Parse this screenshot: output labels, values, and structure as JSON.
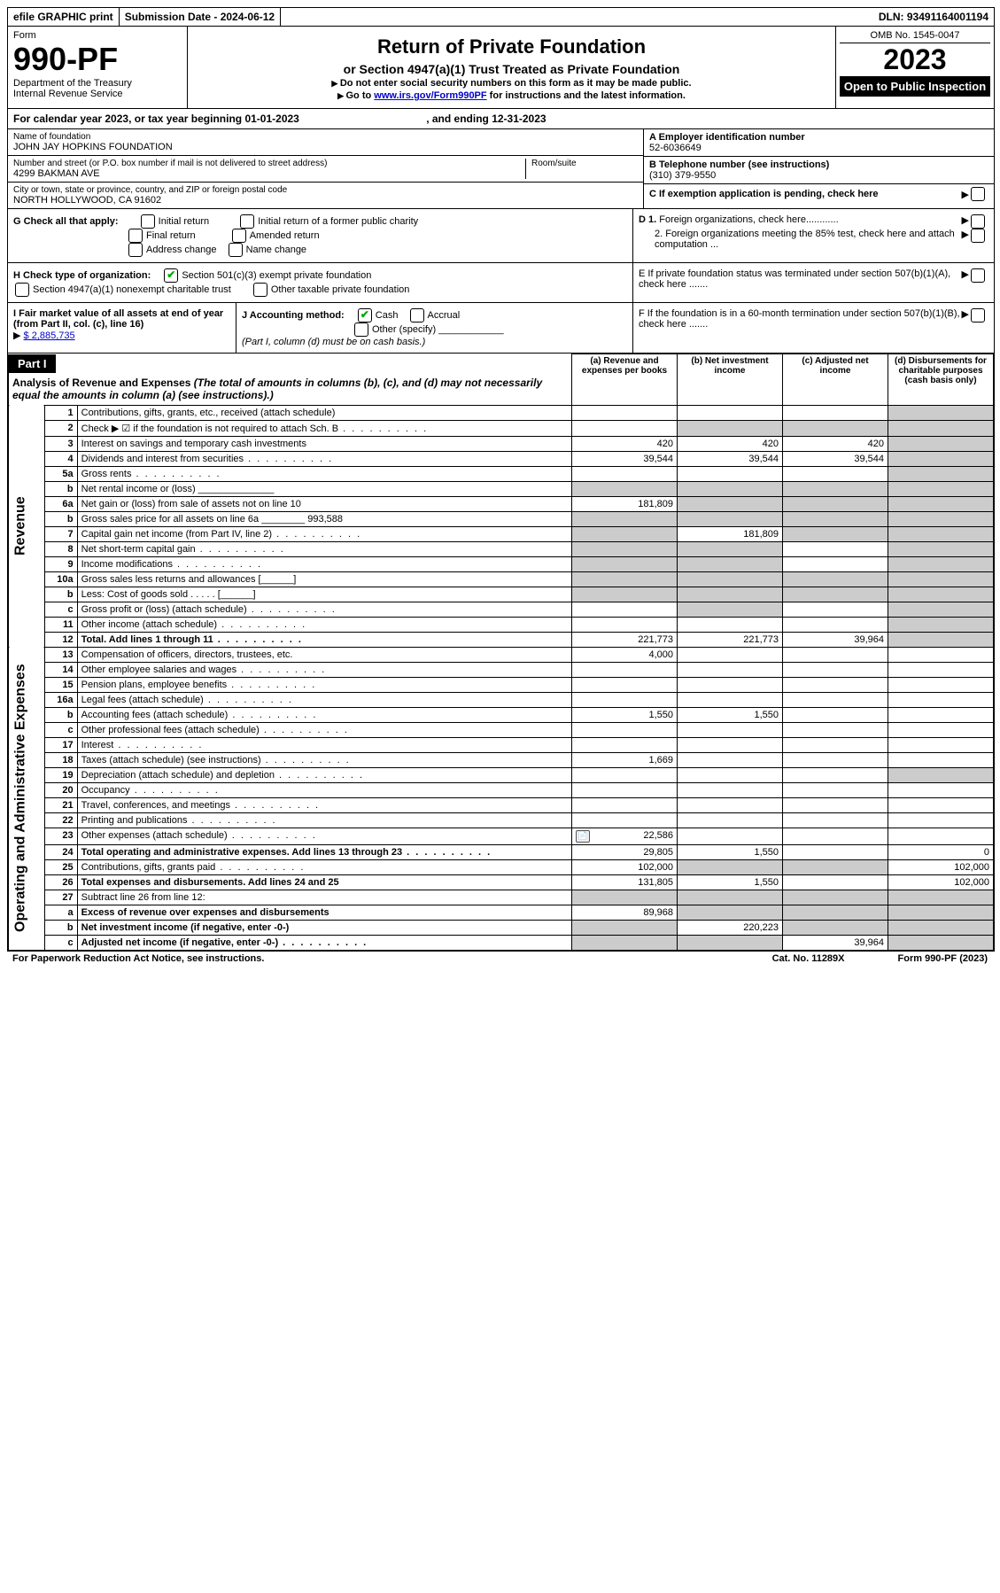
{
  "top_bar": {
    "efile": "efile GRAPHIC print",
    "submission_label": "Submission Date - 2024-06-12",
    "dln": "DLN: 93491164001194"
  },
  "header": {
    "form_label": "Form",
    "form_number": "990-PF",
    "dept1": "Department of the Treasury",
    "dept2": "Internal Revenue Service",
    "title": "Return of Private Foundation",
    "subtitle": "or Section 4947(a)(1) Trust Treated as Private Foundation",
    "note1": "Do not enter social security numbers on this form as it may be made public.",
    "note2_pre": "Go to ",
    "note2_link": "www.irs.gov/Form990PF",
    "note2_post": " for instructions and the latest information.",
    "omb": "OMB No. 1545-0047",
    "year": "2023",
    "open": "Open to Public Inspection"
  },
  "calendar": {
    "text_pre": "For calendar year 2023, or tax year beginning ",
    "begin": "01-01-2023",
    "mid": " , and ending ",
    "end": "12-31-2023"
  },
  "ident": {
    "name_label": "Name of foundation",
    "name": "JOHN JAY HOPKINS FOUNDATION",
    "street_label": "Number and street (or P.O. box number if mail is not delivered to street address)",
    "street": "4299 BAKMAN AVE",
    "room_label": "Room/suite",
    "city_label": "City or town, state or province, country, and ZIP or foreign postal code",
    "city": "NORTH HOLLYWOOD, CA  91602",
    "a_label": "A Employer identification number",
    "a_value": "52-6036649",
    "b_label": "B Telephone number (see instructions)",
    "b_value": "(310) 379-9550",
    "c_label": "C If exemption application is pending, check here"
  },
  "checks": {
    "g_label": "G Check all that apply:",
    "g1": "Initial return",
    "g2": "Initial return of a former public charity",
    "g3": "Final return",
    "g4": "Amended return",
    "g5": "Address change",
    "g6": "Name change",
    "h_label": "H Check type of organization:",
    "h1": "Section 501(c)(3) exempt private foundation",
    "h2": "Section 4947(a)(1) nonexempt charitable trust",
    "h3": "Other taxable private foundation",
    "i_label": "I Fair market value of all assets at end of year (from Part II, col. (c), line 16)",
    "i_value": "$  2,885,735",
    "j_label": "J Accounting method:",
    "j1": "Cash",
    "j2": "Accrual",
    "j3": "Other (specify)",
    "j_note": "(Part I, column (d) must be on cash basis.)",
    "d1": "D 1. Foreign organizations, check here............",
    "d2": "2. Foreign organizations meeting the 85% test, check here and attach computation ...",
    "e": "E  If private foundation status was terminated under section 507(b)(1)(A), check here .......",
    "f": "F  If the foundation is in a 60-month termination under section 507(b)(1)(B), check here ......."
  },
  "part1": {
    "label": "Part I",
    "title": "Analysis of Revenue and Expenses",
    "note": " (The total of amounts in columns (b), (c), and (d) may not necessarily equal the amounts in column (a) (see instructions).)",
    "col_a": "(a)   Revenue and expenses per books",
    "col_b": "(b)   Net investment income",
    "col_c": "(c)   Adjusted net income",
    "col_d": "(d)   Disbursements for charitable purposes (cash basis only)"
  },
  "sections": {
    "revenue": "Revenue",
    "expenses": "Operating and Administrative Expenses"
  },
  "rows": [
    {
      "n": "1",
      "d": "Contributions, gifts, grants, etc., received (attach schedule)",
      "a": "",
      "b": "",
      "c": "",
      "dd": "",
      "d_shade": true
    },
    {
      "n": "2",
      "d": "Check ▶ ☑ if the foundation is not required to attach Sch. B",
      "a": "",
      "b": "",
      "c": "",
      "dd": "",
      "b_shade": true,
      "c_shade": true,
      "d_shade": true,
      "dots": true
    },
    {
      "n": "3",
      "d": "Interest on savings and temporary cash investments",
      "a": "420",
      "b": "420",
      "c": "420",
      "dd": "",
      "d_shade": true
    },
    {
      "n": "4",
      "d": "Dividends and interest from securities",
      "a": "39,544",
      "b": "39,544",
      "c": "39,544",
      "dd": "",
      "d_shade": true,
      "dots": true
    },
    {
      "n": "5a",
      "d": "Gross rents",
      "a": "",
      "b": "",
      "c": "",
      "dd": "",
      "d_shade": true,
      "dots": true
    },
    {
      "n": "b",
      "d": "Net rental income or (loss)  ______________",
      "a": "",
      "b": "",
      "c": "",
      "dd": "",
      "a_shade": true,
      "b_shade": true,
      "c_shade": true,
      "d_shade": true
    },
    {
      "n": "6a",
      "d": "Net gain or (loss) from sale of assets not on line 10",
      "a": "181,809",
      "b": "",
      "c": "",
      "dd": "",
      "b_shade": true,
      "c_shade": true,
      "d_shade": true
    },
    {
      "n": "b",
      "d": "Gross sales price for all assets on line 6a ________ 993,588",
      "a": "",
      "b": "",
      "c": "",
      "dd": "",
      "a_shade": true,
      "b_shade": true,
      "c_shade": true,
      "d_shade": true
    },
    {
      "n": "7",
      "d": "Capital gain net income (from Part IV, line 2)",
      "a": "",
      "b": "181,809",
      "c": "",
      "dd": "",
      "a_shade": true,
      "c_shade": true,
      "d_shade": true,
      "dots": true
    },
    {
      "n": "8",
      "d": "Net short-term capital gain",
      "a": "",
      "b": "",
      "c": "",
      "dd": "",
      "a_shade": true,
      "b_shade": true,
      "d_shade": true,
      "dots": true
    },
    {
      "n": "9",
      "d": "Income modifications",
      "a": "",
      "b": "",
      "c": "",
      "dd": "",
      "a_shade": true,
      "b_shade": true,
      "d_shade": true,
      "dots": true
    },
    {
      "n": "10a",
      "d": "Gross sales less returns and allowances  [______]",
      "a": "",
      "b": "",
      "c": "",
      "dd": "",
      "a_shade": true,
      "b_shade": true,
      "c_shade": true,
      "d_shade": true
    },
    {
      "n": "b",
      "d": "Less: Cost of goods sold   .  .  .  .  .   [______]",
      "a": "",
      "b": "",
      "c": "",
      "dd": "",
      "a_shade": true,
      "b_shade": true,
      "c_shade": true,
      "d_shade": true
    },
    {
      "n": "c",
      "d": "Gross profit or (loss) (attach schedule)",
      "a": "",
      "b": "",
      "c": "",
      "dd": "",
      "b_shade": true,
      "d_shade": true,
      "dots": true
    },
    {
      "n": "11",
      "d": "Other income (attach schedule)",
      "a": "",
      "b": "",
      "c": "",
      "dd": "",
      "d_shade": true,
      "dots": true
    },
    {
      "n": "12",
      "d": "Total. Add lines 1 through 11",
      "a": "221,773",
      "b": "221,773",
      "c": "39,964",
      "dd": "",
      "d_shade": true,
      "bold": true,
      "dots": true
    },
    {
      "n": "13",
      "d": "Compensation of officers, directors, trustees, etc.",
      "a": "4,000",
      "b": "",
      "c": "",
      "dd": ""
    },
    {
      "n": "14",
      "d": "Other employee salaries and wages",
      "a": "",
      "b": "",
      "c": "",
      "dd": "",
      "dots": true
    },
    {
      "n": "15",
      "d": "Pension plans, employee benefits",
      "a": "",
      "b": "",
      "c": "",
      "dd": "",
      "dots": true
    },
    {
      "n": "16a",
      "d": "Legal fees (attach schedule)",
      "a": "",
      "b": "",
      "c": "",
      "dd": "",
      "dots": true
    },
    {
      "n": "b",
      "d": "Accounting fees (attach schedule)",
      "a": "1,550",
      "b": "1,550",
      "c": "",
      "dd": "",
      "dots": true
    },
    {
      "n": "c",
      "d": "Other professional fees (attach schedule)",
      "a": "",
      "b": "",
      "c": "",
      "dd": "",
      "dots": true
    },
    {
      "n": "17",
      "d": "Interest",
      "a": "",
      "b": "",
      "c": "",
      "dd": "",
      "dots": true
    },
    {
      "n": "18",
      "d": "Taxes (attach schedule) (see instructions)",
      "a": "1,669",
      "b": "",
      "c": "",
      "dd": "",
      "dots": true
    },
    {
      "n": "19",
      "d": "Depreciation (attach schedule) and depletion",
      "a": "",
      "b": "",
      "c": "",
      "dd": "",
      "d_shade": true,
      "dots": true
    },
    {
      "n": "20",
      "d": "Occupancy",
      "a": "",
      "b": "",
      "c": "",
      "dd": "",
      "dots": true
    },
    {
      "n": "21",
      "d": "Travel, conferences, and meetings",
      "a": "",
      "b": "",
      "c": "",
      "dd": "",
      "dots": true
    },
    {
      "n": "22",
      "d": "Printing and publications",
      "a": "",
      "b": "",
      "c": "",
      "dd": "",
      "dots": true
    },
    {
      "n": "23",
      "d": "Other expenses (attach schedule)",
      "a": "22,586",
      "b": "",
      "c": "",
      "dd": "",
      "icon": true,
      "dots": true
    },
    {
      "n": "24",
      "d": "Total operating and administrative expenses. Add lines 13 through 23",
      "a": "29,805",
      "b": "1,550",
      "c": "",
      "dd": "0",
      "bold": true,
      "dots": true
    },
    {
      "n": "25",
      "d": "Contributions, gifts, grants paid",
      "a": "102,000",
      "b": "",
      "c": "",
      "dd": "102,000",
      "b_shade": true,
      "c_shade": true,
      "dots": true
    },
    {
      "n": "26",
      "d": "Total expenses and disbursements. Add lines 24 and 25",
      "a": "131,805",
      "b": "1,550",
      "c": "",
      "dd": "102,000",
      "bold": true
    },
    {
      "n": "27",
      "d": "Subtract line 26 from line 12:",
      "a": "",
      "b": "",
      "c": "",
      "dd": "",
      "a_shade": true,
      "b_shade": true,
      "c_shade": true,
      "d_shade": true
    },
    {
      "n": "a",
      "d": "Excess of revenue over expenses and disbursements",
      "a": "89,968",
      "b": "",
      "c": "",
      "dd": "",
      "b_shade": true,
      "c_shade": true,
      "d_shade": true,
      "bold": true
    },
    {
      "n": "b",
      "d": "Net investment income (if negative, enter -0-)",
      "a": "",
      "b": "220,223",
      "c": "",
      "dd": "",
      "a_shade": true,
      "c_shade": true,
      "d_shade": true,
      "bold": true
    },
    {
      "n": "c",
      "d": "Adjusted net income (if negative, enter -0-)",
      "a": "",
      "b": "",
      "c": "39,964",
      "dd": "",
      "a_shade": true,
      "b_shade": true,
      "d_shade": true,
      "bold": true,
      "dots": true
    }
  ],
  "footer": {
    "left": "For Paperwork Reduction Act Notice, see instructions.",
    "center": "Cat. No. 11289X",
    "right": "Form 990-PF (2023)"
  }
}
